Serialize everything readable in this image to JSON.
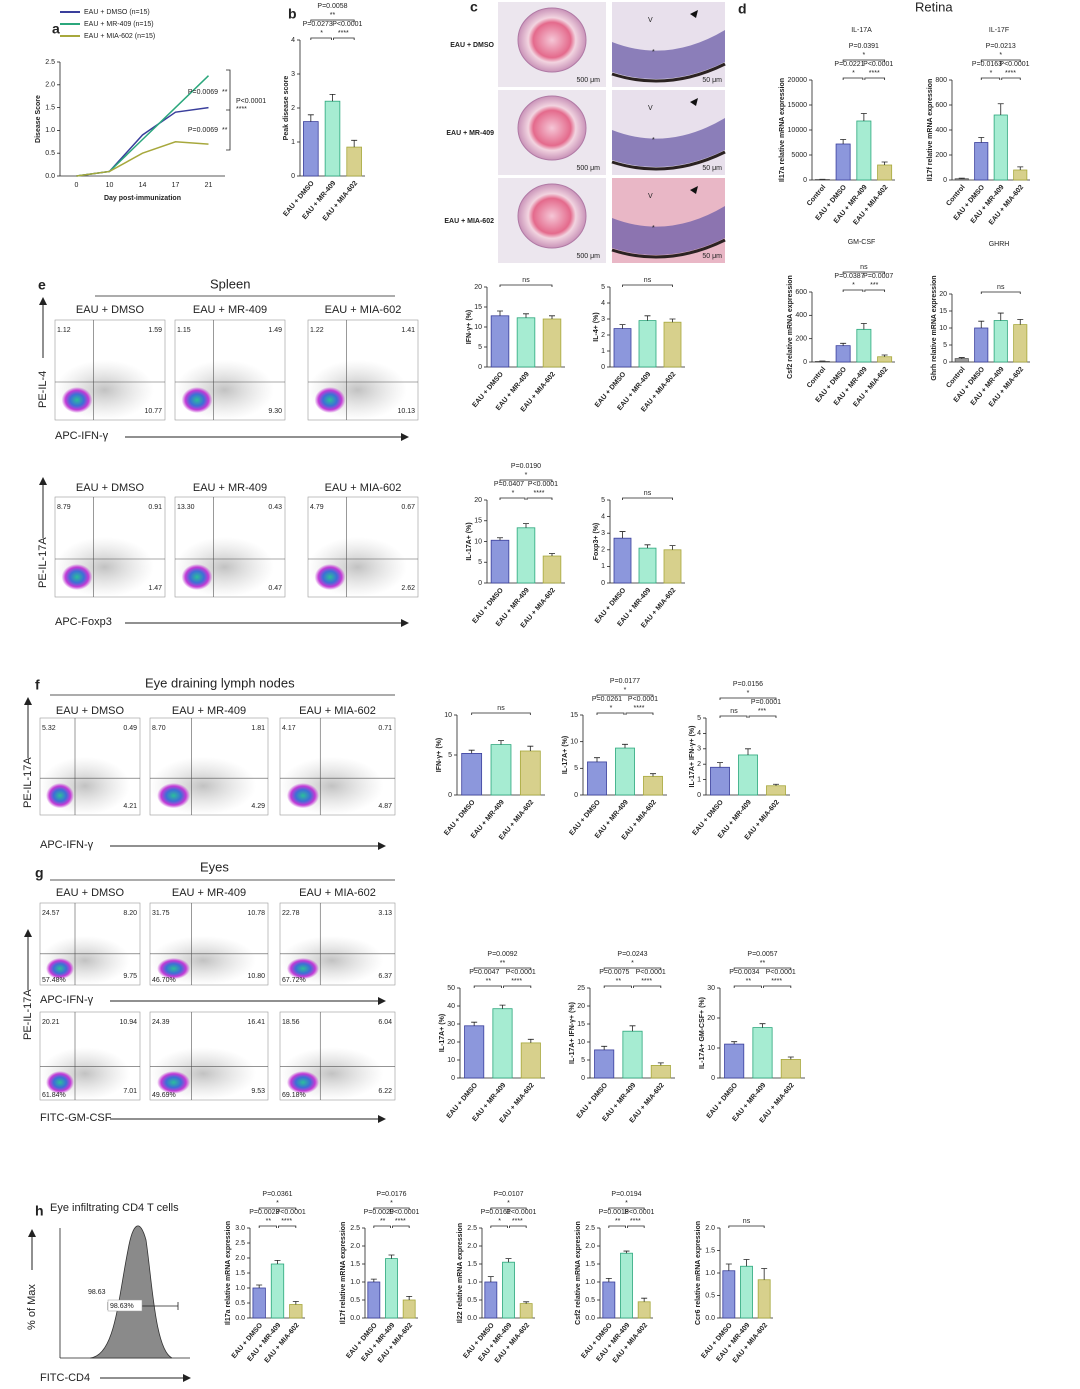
{
  "figure_labels": [
    "a",
    "b",
    "c",
    "d",
    "e",
    "f",
    "g",
    "h"
  ],
  "section_titles": {
    "retina": "Retina",
    "spleen": "Spleen",
    "lymph": "Eye draining lymph nodes",
    "eyes": "Eyes",
    "h": "Eye infiltrating CD4 T cells"
  },
  "chart_data": [
    {
      "type": "line",
      "ylabel": "Disease Score",
      "xlabel": "Day post-immunization",
      "categories": [
        "0",
        "10",
        "14",
        "17",
        "21"
      ],
      "series": [
        {
          "name": "EAU + DMSO (n=15)",
          "color": "#3a3f9c",
          "values": [
            0,
            0.1,
            0.9,
            1.4,
            1.5
          ]
        },
        {
          "name": "EAU + MR-409 (n=15)",
          "color": "#2ba77c",
          "values": [
            0,
            0.1,
            0.8,
            1.5,
            2.2
          ]
        },
        {
          "name": "EAU + MIA-602 (n=15)",
          "color": "#a7a83c",
          "values": [
            0,
            0.1,
            0.5,
            0.75,
            0.7
          ]
        }
      ],
      "ylim": [
        0,
        2.5
      ],
      "yticks": [
        {
          "value": 0,
          "label": "0.0"
        },
        0.5,
        {
          "value": 1,
          "label": "1.0"
        },
        1.5,
        {
          "value": 2,
          "label": "2.0"
        },
        2.5
      ],
      "annotations": [
        "P=0.0069",
        "**",
        "P<0.0001",
        "****",
        "P=0.0069",
        "**"
      ]
    },
    {
      "type": "bar",
      "ylabel": "Peak disease score",
      "categories": [
        "EAU + DMSO",
        "EAU + MR-409",
        "EAU + MIA-602"
      ],
      "values": [
        1.6,
        2.2,
        0.85
      ],
      "errors": [
        0.2,
        0.2,
        0.2
      ],
      "colors": [
        "#8c97dc",
        "#a6ecd2",
        "#d7d08c"
      ],
      "ylim": [
        0,
        4
      ],
      "yticks": [
        0,
        1,
        2,
        3,
        4
      ],
      "annotations": [
        "P=0.0058",
        "**",
        "P=0.0273",
        "P<0.0001",
        "*",
        "****"
      ]
    },
    {
      "type": "bar",
      "title": "IL-17A",
      "ylabel": "Il17a relative mRNA expression",
      "categories": [
        "Control",
        "EAU + DMSO",
        "EAU + MR-409",
        "EAU + MIA-602"
      ],
      "values": [
        100,
        7200,
        11800,
        3000
      ],
      "errors": [
        50,
        900,
        1500,
        600
      ],
      "colors": [
        "#999999",
        "#8c97dc",
        "#a6ecd2",
        "#d7d08c"
      ],
      "ylim": [
        0,
        20000
      ],
      "yticks": [
        0,
        5000,
        10000,
        15000,
        20000
      ],
      "annotations": [
        "P=0.0391",
        "*",
        "P=0.0221",
        "P<0.0001",
        "*",
        "****"
      ]
    },
    {
      "type": "bar",
      "title": "IL-17F",
      "ylabel": "Il17f relative mRNA expression",
      "categories": [
        "Control",
        "EAU + DMSO",
        "EAU + MR-409",
        "EAU + MIA-602"
      ],
      "values": [
        10,
        300,
        520,
        80
      ],
      "errors": [
        5,
        40,
        90,
        25
      ],
      "colors": [
        "#999999",
        "#8c97dc",
        "#a6ecd2",
        "#d7d08c"
      ],
      "ylim": [
        0,
        800
      ],
      "yticks": [
        0,
        200,
        400,
        600,
        800
      ],
      "annotations": [
        "P=0.0213",
        "*",
        "P=0.0163",
        "P<0.0001",
        "*",
        "****"
      ]
    },
    {
      "type": "bar",
      "title": "GM-CSF",
      "ylabel": "Csf2 relative mRNA expression",
      "categories": [
        "Control",
        "EAU + DMSO",
        "EAU + MR-409",
        "EAU + MIA-602"
      ],
      "values": [
        5,
        140,
        280,
        45
      ],
      "errors": [
        3,
        20,
        50,
        15
      ],
      "colors": [
        "#999999",
        "#8c97dc",
        "#a6ecd2",
        "#d7d08c"
      ],
      "ylim": [
        0,
        600
      ],
      "yticks": [
        0,
        200,
        400,
        600
      ],
      "annotations": [
        "ns",
        "P=0.0387",
        "P=0.0007",
        "*",
        "***"
      ]
    },
    {
      "type": "bar",
      "title": "GHRH",
      "ylabel": "Ghrh relative mRNA expression",
      "categories": [
        "Control",
        "EAU + DMSO",
        "EAU + MR-409",
        "EAU + MIA-602"
      ],
      "values": [
        1,
        10,
        12.2,
        11
      ],
      "errors": [
        0.3,
        2,
        2.2,
        1.5
      ],
      "colors": [
        "#999999",
        "#8c97dc",
        "#a6ecd2",
        "#d7d08c"
      ],
      "ylim": [
        0,
        20
      ],
      "yticks": [
        0,
        5,
        10,
        15,
        20
      ],
      "annotations": [
        "ns"
      ]
    },
    {
      "type": "bar",
      "ylabel": "IFN-γ+ (%)",
      "categories": [
        "EAU + DMSO",
        "EAU + MR-409",
        "EAU + MIA-602"
      ],
      "values": [
        12.8,
        12.3,
        12
      ],
      "errors": [
        1.2,
        1,
        0.8
      ],
      "colors": [
        "#8c97dc",
        "#a6ecd2",
        "#d7d08c"
      ],
      "ylim": [
        0,
        20
      ],
      "yticks": [
        0,
        5,
        10,
        15,
        20
      ],
      "annotations": [
        "ns"
      ]
    },
    {
      "type": "bar",
      "ylabel": "IL-4+ (%)",
      "categories": [
        "EAU + DMSO",
        "EAU + MR-409",
        "EAU + MIA-602"
      ],
      "values": [
        2.4,
        2.9,
        2.8
      ],
      "errors": [
        0.25,
        0.3,
        0.2
      ],
      "colors": [
        "#8c97dc",
        "#a6ecd2",
        "#d7d08c"
      ],
      "ylim": [
        0,
        5
      ],
      "yticks": [
        0,
        1,
        2,
        3,
        4,
        5
      ],
      "annotations": [
        "ns"
      ]
    },
    {
      "type": "bar",
      "ylabel": "IL-17A+ (%)",
      "categories": [
        "EAU + DMSO",
        "EAU + MR-409",
        "EAU + MIA-602"
      ],
      "values": [
        10.3,
        13.3,
        6.5
      ],
      "errors": [
        0.6,
        1,
        0.6
      ],
      "colors": [
        "#8c97dc",
        "#a6ecd2",
        "#d7d08c"
      ],
      "ylim": [
        0,
        20
      ],
      "yticks": [
        0,
        5,
        10,
        15,
        20
      ],
      "annotations": [
        "P=0.0190",
        "*",
        "P=0.0407",
        "P<0.0001",
        "*",
        "****"
      ]
    },
    {
      "type": "bar",
      "ylabel": "Foxp3+ (%)",
      "categories": [
        "EAU + DMSO",
        "EAU + MR-409",
        "EAU + MIA-602"
      ],
      "values": [
        2.7,
        2.1,
        2.0
      ],
      "errors": [
        0.4,
        0.2,
        0.25
      ],
      "colors": [
        "#8c97dc",
        "#a6ecd2",
        "#d7d08c"
      ],
      "ylim": [
        0,
        5
      ],
      "yticks": [
        0,
        1,
        2,
        3,
        4,
        5
      ],
      "annotations": [
        "ns"
      ]
    },
    {
      "type": "bar",
      "ylabel": "IFN-γ+ (%)",
      "categories": [
        "EAU + DMSO",
        "EAU + MR-409",
        "EAU + MIA-602"
      ],
      "values": [
        5.2,
        6.3,
        5.5
      ],
      "errors": [
        0.4,
        0.5,
        0.6
      ],
      "colors": [
        "#8c97dc",
        "#a6ecd2",
        "#d7d08c"
      ],
      "ylim": [
        0,
        10
      ],
      "yticks": [
        0,
        5,
        10
      ],
      "annotations": [
        "ns"
      ]
    },
    {
      "type": "bar",
      "ylabel": "IL-17A+ (%)",
      "categories": [
        "EAU + DMSO",
        "EAU + MR-409",
        "EAU + MIA-602"
      ],
      "values": [
        6.2,
        8.8,
        3.5
      ],
      "errors": [
        0.8,
        0.7,
        0.5
      ],
      "colors": [
        "#8c97dc",
        "#a6ecd2",
        "#d7d08c"
      ],
      "ylim": [
        0,
        15
      ],
      "yticks": [
        0,
        5,
        10,
        15
      ],
      "annotations": [
        "P=0.0177",
        "*",
        "P=0.0261",
        "P<0.0001",
        "*",
        "****"
      ]
    },
    {
      "type": "bar",
      "ylabel": "IL-17A+ IFN-γ+ (%)",
      "categories": [
        "EAU + DMSO",
        "EAU + MR-409",
        "EAU + MIA-602"
      ],
      "values": [
        1.8,
        2.6,
        0.6
      ],
      "errors": [
        0.3,
        0.4,
        0.1
      ],
      "colors": [
        "#8c97dc",
        "#a6ecd2",
        "#d7d08c"
      ],
      "ylim": [
        0,
        5
      ],
      "yticks": [
        0,
        1,
        2,
        3,
        4,
        5
      ],
      "annotations": [
        "P=0.0156",
        "*",
        "ns",
        "P=0.0001",
        "***"
      ]
    },
    {
      "type": "bar",
      "ylabel": "IL-17A+ (%)",
      "categories": [
        "EAU + DMSO",
        "EAU + MR-409",
        "EAU + MIA-602"
      ],
      "values": [
        29,
        38.5,
        19.5
      ],
      "errors": [
        2,
        2,
        2
      ],
      "colors": [
        "#8c97dc",
        "#a6ecd2",
        "#d7d08c"
      ],
      "ylim": [
        0,
        50
      ],
      "yticks": [
        0,
        10,
        20,
        30,
        40,
        50
      ],
      "annotations": [
        "P=0.0092",
        "**",
        "P=0.0047",
        "P<0.0001",
        "**",
        "****"
      ]
    },
    {
      "type": "bar",
      "ylabel": "IL-17A+ IFN-γ+ (%)",
      "categories": [
        "EAU + DMSO",
        "EAU + MR-409",
        "EAU + MIA-602"
      ],
      "values": [
        7.8,
        13,
        3.5
      ],
      "errors": [
        1,
        1.5,
        0.7
      ],
      "colors": [
        "#8c97dc",
        "#a6ecd2",
        "#d7d08c"
      ],
      "ylim": [
        0,
        25
      ],
      "yticks": [
        0,
        5,
        10,
        15,
        20,
        25
      ],
      "annotations": [
        "P=0.0243",
        "*",
        "P=0.0075",
        "P<0.0001",
        "**",
        "****"
      ]
    },
    {
      "type": "bar",
      "ylabel": "IL-17A+ GM-CSF+ (%)",
      "categories": [
        "EAU + DMSO",
        "EAU + MR-409",
        "EAU + MIA-602"
      ],
      "values": [
        11.3,
        16.8,
        6.2
      ],
      "errors": [
        0.8,
        1.3,
        0.8
      ],
      "colors": [
        "#8c97dc",
        "#a6ecd2",
        "#d7d08c"
      ],
      "ylim": [
        0,
        30
      ],
      "yticks": [
        0,
        10,
        20,
        30
      ],
      "annotations": [
        "P=0.0057",
        "**",
        "P=0.0034",
        "P<0.0001",
        "**",
        "****"
      ]
    },
    {
      "type": "bar",
      "ylabel": "Il17a relative mRNA expression",
      "categories": [
        "EAU + DMSO",
        "EAU + MR-409",
        "EAU + MIA-602"
      ],
      "values": [
        1.0,
        1.8,
        0.45
      ],
      "errors": [
        0.1,
        0.12,
        0.1
      ],
      "colors": [
        "#8c97dc",
        "#a6ecd2",
        "#d7d08c"
      ],
      "ylim": [
        0,
        3
      ],
      "yticks": [
        {
          "value": 0,
          "label": "0.0"
        },
        0.5,
        {
          "value": 1,
          "label": "1.0"
        },
        1.5,
        {
          "value": 2,
          "label": "2.0"
        },
        2.5,
        {
          "value": 3,
          "label": "3.0"
        }
      ],
      "annotations": [
        "P=0.0361",
        "*",
        "P=0.0023",
        "P<0.0001",
        "**",
        "****"
      ]
    },
    {
      "type": "bar",
      "ylabel": "Il17f relative mRNA expression",
      "categories": [
        "EAU + DMSO",
        "EAU + MR-409",
        "EAU + MIA-602"
      ],
      "values": [
        1.0,
        1.65,
        0.5
      ],
      "errors": [
        0.08,
        0.1,
        0.1
      ],
      "colors": [
        "#8c97dc",
        "#a6ecd2",
        "#d7d08c"
      ],
      "ylim": [
        0,
        2.5
      ],
      "yticks": [
        {
          "value": 0,
          "label": "0.0"
        },
        0.5,
        {
          "value": 1,
          "label": "1.0"
        },
        1.5,
        {
          "value": 2,
          "label": "2.0"
        },
        2.5
      ],
      "annotations": [
        "P=0.0176",
        "*",
        "P=0.0029",
        "P<0.0001",
        "**",
        "****"
      ]
    },
    {
      "type": "bar",
      "ylabel": "Il22 relative mRNA expression",
      "categories": [
        "EAU + DMSO",
        "EAU + MR-409",
        "EAU + MIA-602"
      ],
      "values": [
        1.0,
        1.55,
        0.4
      ],
      "errors": [
        0.15,
        0.1,
        0.05
      ],
      "colors": [
        "#8c97dc",
        "#a6ecd2",
        "#d7d08c"
      ],
      "ylim": [
        0,
        2.5
      ],
      "yticks": [
        {
          "value": 0,
          "label": "0.0"
        },
        0.5,
        {
          "value": 1,
          "label": "1.0"
        },
        1.5,
        {
          "value": 2,
          "label": "2.0"
        },
        2.5
      ],
      "annotations": [
        "P=0.0107",
        "*",
        "P=0.0161",
        "P<0.0001",
        "*",
        "****"
      ]
    },
    {
      "type": "bar",
      "ylabel": "Csf2 relative mRNA expression",
      "categories": [
        "EAU + DMSO",
        "EAU + MR-409",
        "EAU + MIA-602"
      ],
      "values": [
        1.0,
        1.8,
        0.45
      ],
      "errors": [
        0.1,
        0.06,
        0.1
      ],
      "colors": [
        "#8c97dc",
        "#a6ecd2",
        "#d7d08c"
      ],
      "ylim": [
        0,
        2.5
      ],
      "yticks": [
        {
          "value": 0,
          "label": "0.0"
        },
        0.5,
        {
          "value": 1,
          "label": "1.0"
        },
        1.5,
        {
          "value": 2,
          "label": "2.0"
        },
        2.5
      ],
      "annotations": [
        "P=0.0194",
        "*",
        "P=0.0018",
        "P<0.0001",
        "**",
        "****"
      ]
    },
    {
      "type": "bar",
      "ylabel": "Ccr6 relative mRNA expression",
      "categories": [
        "EAU + DMSO",
        "EAU + MR-409",
        "EAU + MIA-602"
      ],
      "values": [
        1.05,
        1.15,
        0.85
      ],
      "errors": [
        0.15,
        0.15,
        0.25
      ],
      "colors": [
        "#8c97dc",
        "#a6ecd2",
        "#d7d08c"
      ],
      "ylim": [
        0,
        2
      ],
      "yticks": [
        {
          "value": 0,
          "label": "0.0"
        },
        0.5,
        {
          "value": 1,
          "label": "1.0"
        },
        1.5,
        {
          "value": 2,
          "label": "2.0"
        }
      ],
      "annotations": [
        "ns"
      ]
    }
  ],
  "flow_panels": [
    {
      "ylabel": "PE-IL-4",
      "xlabel": "APC-IFN-γ",
      "plots": [
        {
          "name": "EAU + DMSO",
          "quadrants": [
            "1.12",
            "1.59",
            "10.77"
          ]
        },
        {
          "name": "EAU + MR-409",
          "quadrants": [
            "1.15",
            "1.49",
            "9.30"
          ]
        },
        {
          "name": "EAU + MIA-602",
          "quadrants": [
            "1.22",
            "1.41",
            "10.13"
          ]
        }
      ]
    },
    {
      "ylabel": "PE-IL-17A",
      "xlabel": "APC-Foxp3",
      "plots": [
        {
          "name": "EAU + DMSO",
          "quadrants": [
            "8.79",
            "0.91",
            "1.47"
          ]
        },
        {
          "name": "EAU + MR-409",
          "quadrants": [
            "13.30",
            "0.43",
            "0.47"
          ]
        },
        {
          "name": "EAU + MIA-602",
          "quadrants": [
            "4.79",
            "0.67",
            "2.62"
          ]
        }
      ]
    },
    {
      "ylabel": "PE-IL-17A",
      "xlabel": "APC-IFN-γ",
      "plots": [
        {
          "name": "EAU + DMSO",
          "quadrants": [
            "5.32",
            "0.49",
            "4.21"
          ]
        },
        {
          "name": "EAU + MR-409",
          "quadrants": [
            "8.70",
            "1.81",
            "4.29"
          ]
        },
        {
          "name": "EAU + MIA-602",
          "quadrants": [
            "4.17",
            "0.71",
            "4.87"
          ]
        }
      ]
    },
    {
      "xlabel": "APC-IFN-γ",
      "plots": [
        {
          "name": "EAU + DMSO",
          "quadrants": [
            "24.57",
            "8.20",
            "57.48%",
            "9.75"
          ]
        },
        {
          "name": "EAU + MR-409",
          "quadrants": [
            "31.75",
            "10.78",
            "46.70%",
            "10.80"
          ]
        },
        {
          "name": "EAU + MIA-602",
          "quadrants": [
            "22.78",
            "3.13",
            "67.72%",
            "6.37"
          ]
        }
      ]
    },
    {
      "ylabel": "PE-IL-17A",
      "xlabel": "FITC-GM-CSF",
      "plots": [
        {
          "quadrants": [
            "20.21",
            "10.94",
            "61.84%",
            "7.01"
          ]
        },
        {
          "quadrants": [
            "24.39",
            "16.41",
            "49.69%",
            "9.53"
          ]
        },
        {
          "quadrants": [
            "18.56",
            "6.04",
            "69.18%",
            "6.22"
          ]
        }
      ]
    }
  ],
  "histology": {
    "rows": [
      "EAU + DMSO",
      "EAU + MR-409",
      "EAU + MIA-602"
    ],
    "scale_left": "500 μm",
    "scale_right": "50 μm",
    "marker": "V",
    "asterisk": "*"
  },
  "histogram": {
    "value": "98.63",
    "gate_label": "98.63%",
    "ylabel": "% of Max",
    "xlabel": "FITC-CD4"
  }
}
